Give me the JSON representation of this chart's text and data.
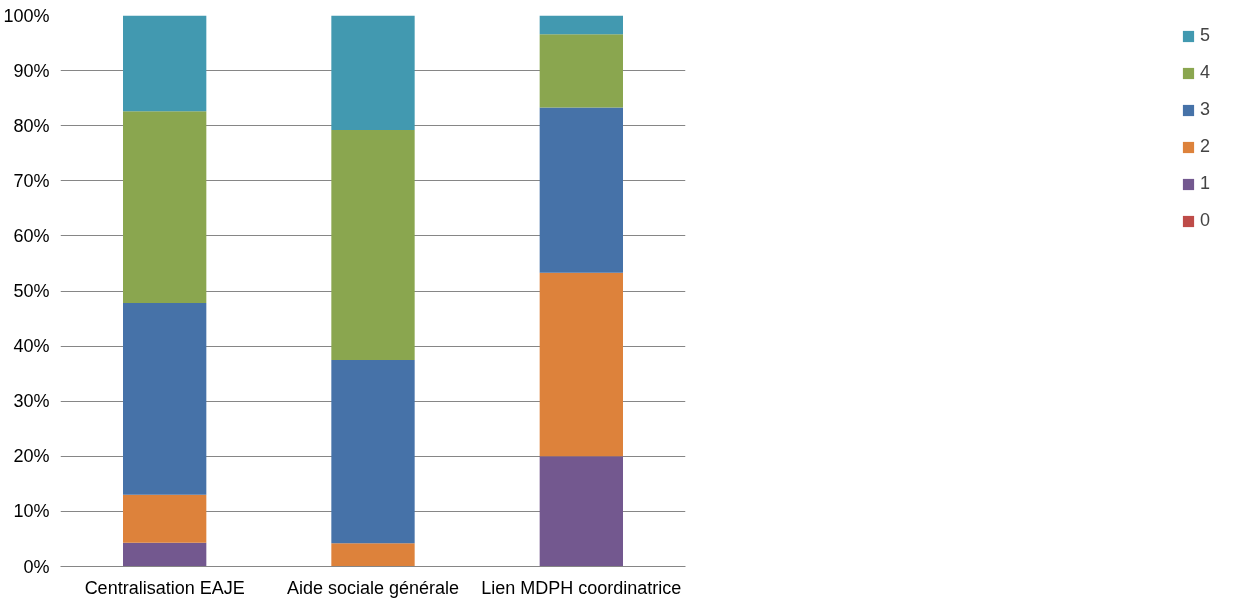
{
  "chart_data": {
    "type": "bar",
    "stacked": true,
    "categories": [
      "Centralisation EAJE",
      "Aide sociale générale",
      "Lien MDPH coordinatrice"
    ],
    "series": [
      {
        "name": "0",
        "color": "#be4b48",
        "values": [
          0,
          0,
          0
        ]
      },
      {
        "name": "1",
        "color": "#73588f",
        "values": [
          4.3,
          0,
          20
        ]
      },
      {
        "name": "2",
        "color": "#dd823b",
        "values": [
          8.7,
          4.2,
          33.3
        ]
      },
      {
        "name": "3",
        "color": "#4672a8",
        "values": [
          34.8,
          33.3,
          30
        ]
      },
      {
        "name": "4",
        "color": "#8aa64f",
        "values": [
          34.8,
          41.7,
          13.3
        ]
      },
      {
        "name": "5",
        "color": "#4299b0",
        "values": [
          17.4,
          20.8,
          3.4
        ]
      }
    ],
    "ylim": [
      0,
      100
    ],
    "yticks": [
      {
        "value": 0,
        "label": "0%"
      },
      {
        "value": 10,
        "label": "10%"
      },
      {
        "value": 20,
        "label": "20%"
      },
      {
        "value": 30,
        "label": "30%"
      },
      {
        "value": 40,
        "label": "40%"
      },
      {
        "value": 50,
        "label": "50%"
      },
      {
        "value": 60,
        "label": "60%"
      },
      {
        "value": 70,
        "label": "70%"
      },
      {
        "value": 80,
        "label": "80%"
      },
      {
        "value": 90,
        "label": "90%"
      },
      {
        "value": 100,
        "label": "100%"
      }
    ],
    "grid": "y",
    "legend": "right"
  }
}
